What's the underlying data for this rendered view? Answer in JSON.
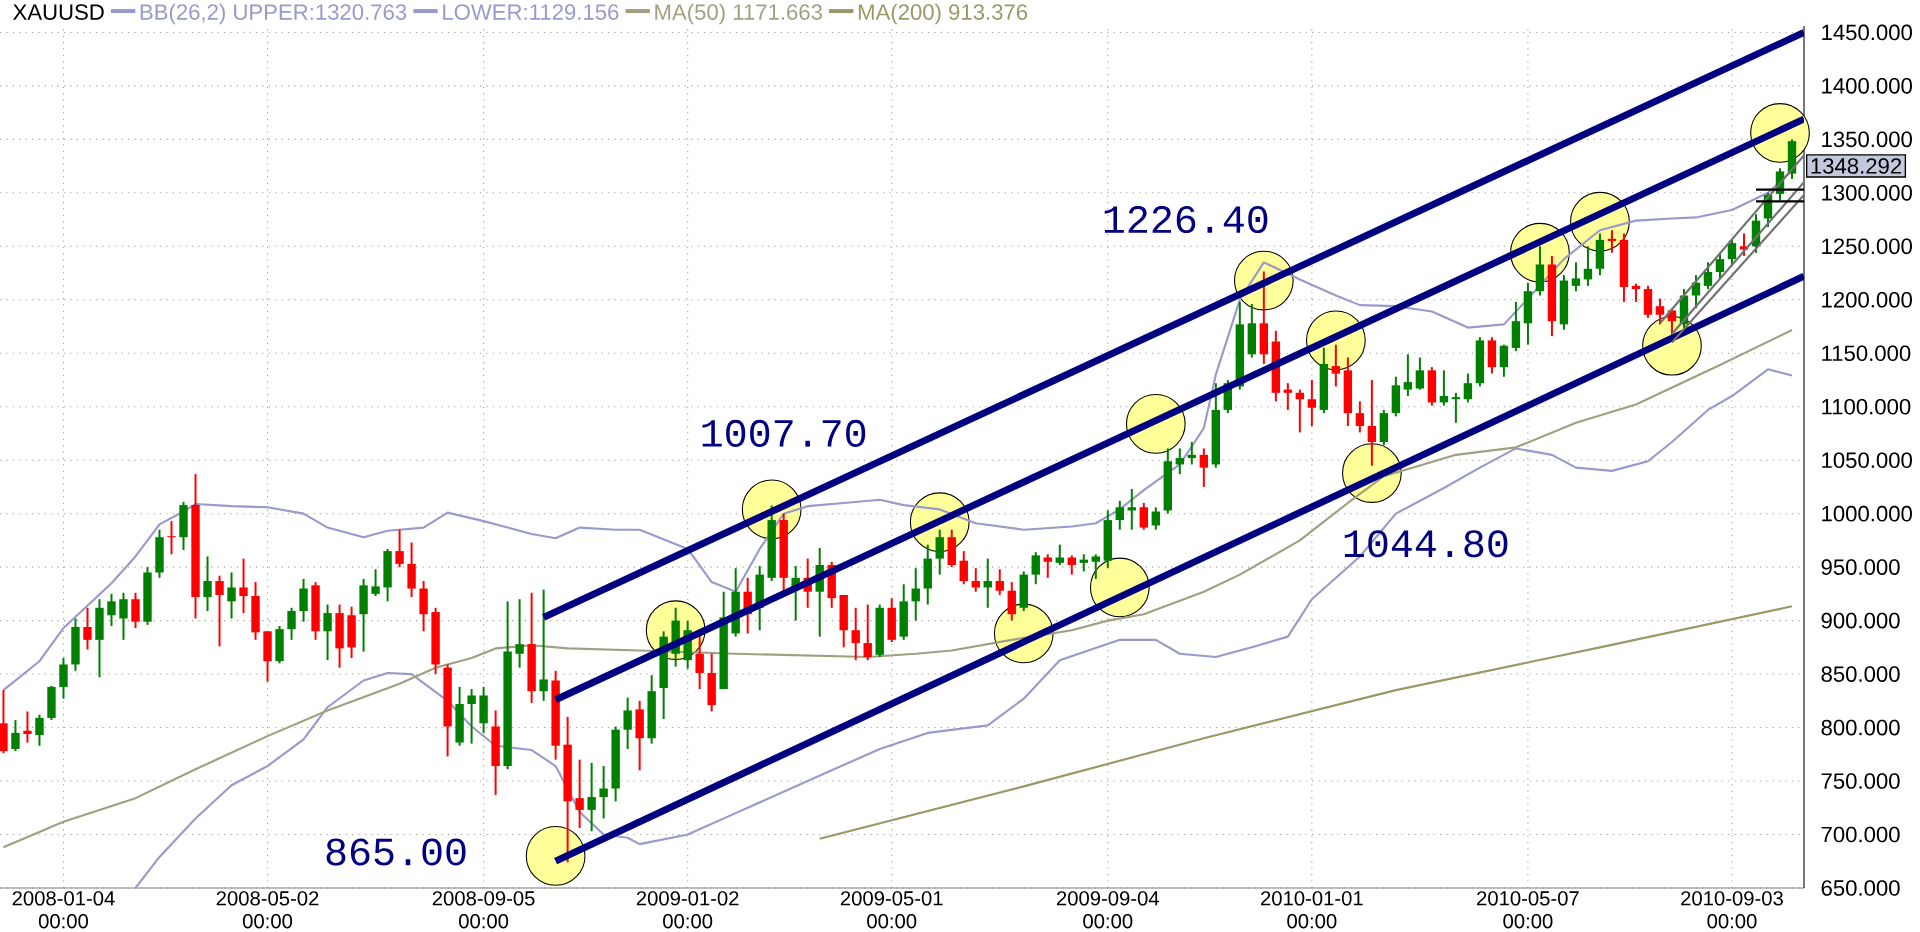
{
  "chart_data": {
    "type": "candlestick",
    "title": "XAUUSD",
    "x": [
      "2007-11-30",
      "2007-12-07",
      "2007-12-14",
      "2007-12-21",
      "2007-12-28",
      "2008-01-04",
      "2008-01-11",
      "2008-01-18",
      "2008-01-25",
      "2008-02-01",
      "2008-02-08",
      "2008-02-15",
      "2008-02-22",
      "2008-02-29",
      "2008-03-07",
      "2008-03-14",
      "2008-03-21",
      "2008-03-28",
      "2008-04-04",
      "2008-04-11",
      "2008-04-18",
      "2008-04-25",
      "2008-05-02",
      "2008-05-09",
      "2008-05-16",
      "2008-05-23",
      "2008-05-30",
      "2008-06-06",
      "2008-06-13",
      "2008-06-20",
      "2008-06-27",
      "2008-07-04",
      "2008-07-11",
      "2008-07-18",
      "2008-07-25",
      "2008-08-01",
      "2008-08-08",
      "2008-08-15",
      "2008-08-22",
      "2008-08-29",
      "2008-09-05",
      "2008-09-12",
      "2008-09-19",
      "2008-09-26",
      "2008-10-03",
      "2008-10-10",
      "2008-10-17",
      "2008-10-24",
      "2008-10-31",
      "2008-11-07",
      "2008-11-14",
      "2008-11-21",
      "2008-11-28",
      "2008-12-05",
      "2008-12-12",
      "2008-12-19",
      "2008-12-26",
      "2009-01-02",
      "2009-01-09",
      "2009-01-16",
      "2009-01-23",
      "2009-01-30",
      "2009-02-06",
      "2009-02-13",
      "2009-02-20",
      "2009-02-27",
      "2009-03-06",
      "2009-03-13",
      "2009-03-20",
      "2009-03-27",
      "2009-04-03",
      "2009-04-10",
      "2009-04-17",
      "2009-04-24",
      "2009-05-01",
      "2009-05-08",
      "2009-05-15",
      "2009-05-22",
      "2009-05-29",
      "2009-06-05",
      "2009-06-12",
      "2009-06-19",
      "2009-06-26",
      "2009-07-03",
      "2009-07-10",
      "2009-07-17",
      "2009-07-24",
      "2009-07-31",
      "2009-08-07",
      "2009-08-14",
      "2009-08-21",
      "2009-08-28",
      "2009-09-04",
      "2009-09-11",
      "2009-09-18",
      "2009-09-25",
      "2009-10-02",
      "2009-10-09",
      "2009-10-16",
      "2009-10-23",
      "2009-10-30",
      "2009-11-06",
      "2009-11-13",
      "2009-11-20",
      "2009-11-27",
      "2009-12-04",
      "2009-12-11",
      "2009-12-18",
      "2009-12-25",
      "2010-01-01",
      "2010-01-08",
      "2010-01-15",
      "2010-01-22",
      "2010-01-29",
      "2010-02-05",
      "2010-02-12",
      "2010-02-19",
      "2010-02-26",
      "2010-03-05",
      "2010-03-12",
      "2010-03-19",
      "2010-03-26",
      "2010-04-02",
      "2010-04-09",
      "2010-04-16",
      "2010-04-23",
      "2010-04-30",
      "2010-05-07",
      "2010-05-14",
      "2010-05-21",
      "2010-05-28",
      "2010-06-04",
      "2010-06-11",
      "2010-06-18",
      "2010-06-25",
      "2010-07-02",
      "2010-07-09",
      "2010-07-16",
      "2010-07-23",
      "2010-07-30",
      "2010-08-06",
      "2010-08-13",
      "2010-08-20",
      "2010-08-27",
      "2010-09-03",
      "2010-09-10",
      "2010-09-17",
      "2010-09-24",
      "2010-10-01",
      "2010-10-08"
    ],
    "ohlc": [
      [
        804,
        835,
        776,
        778
      ],
      [
        780,
        807,
        778,
        795
      ],
      [
        797,
        815,
        786,
        794
      ],
      [
        793,
        812,
        783,
        809
      ],
      [
        809,
        839,
        807,
        838
      ],
      [
        838,
        865,
        827,
        859
      ],
      [
        859,
        902,
        853,
        894
      ],
      [
        894,
        912,
        873,
        882
      ],
      [
        882,
        920,
        847,
        912
      ],
      [
        905,
        925,
        895,
        918
      ],
      [
        902,
        926,
        882,
        920
      ],
      [
        920,
        926,
        893,
        899
      ],
      [
        899,
        950,
        896,
        945
      ],
      [
        945,
        985,
        940,
        978
      ],
      [
        979,
        993,
        962,
        978
      ],
      [
        978,
        1011,
        966,
        1008
      ],
      [
        1008,
        1037,
        902,
        922
      ],
      [
        922,
        960,
        909,
        937
      ],
      [
        937,
        942,
        876,
        924
      ],
      [
        918,
        945,
        902,
        931
      ],
      [
        931,
        958,
        907,
        923
      ],
      [
        923,
        936,
        882,
        889
      ],
      [
        890,
        890,
        843,
        862
      ],
      [
        862,
        895,
        860,
        892
      ],
      [
        892,
        912,
        882,
        909
      ],
      [
        909,
        939,
        899,
        930
      ],
      [
        933,
        936,
        882,
        890
      ],
      [
        890,
        915,
        863,
        907
      ],
      [
        907,
        915,
        856,
        874
      ],
      [
        905,
        913,
        865,
        875
      ],
      [
        906,
        939,
        871,
        933
      ],
      [
        925,
        948,
        923,
        932
      ],
      [
        931,
        967,
        918,
        965
      ],
      [
        965,
        985,
        950,
        953
      ],
      [
        953,
        973,
        922,
        930
      ],
      [
        930,
        937,
        890,
        906
      ],
      [
        908,
        912,
        850,
        859
      ],
      [
        856,
        859,
        773,
        801
      ],
      [
        786,
        838,
        783,
        822
      ],
      [
        822,
        836,
        785,
        830
      ],
      [
        804,
        838,
        795,
        830
      ],
      [
        801,
        816,
        737,
        764
      ],
      [
        764,
        918,
        761,
        871
      ],
      [
        869,
        920,
        856,
        878
      ],
      [
        878,
        926,
        823,
        834
      ],
      [
        834,
        929,
        825,
        845
      ],
      [
        844,
        853,
        770,
        783
      ],
      [
        784,
        810,
        674,
        731
      ],
      [
        734,
        770,
        706,
        723
      ],
      [
        723,
        767,
        703,
        735
      ],
      [
        735,
        764,
        715,
        743
      ],
      [
        743,
        801,
        731,
        798
      ],
      [
        798,
        828,
        780,
        816
      ],
      [
        817,
        825,
        760,
        790
      ],
      [
        790,
        849,
        785,
        834
      ],
      [
        837,
        890,
        808,
        885
      ],
      [
        869,
        912,
        857,
        900
      ],
      [
        863,
        900,
        855,
        891
      ],
      [
        869,
        890,
        836,
        851
      ],
      [
        851,
        869,
        815,
        821
      ],
      [
        836,
        927,
        836,
        903
      ],
      [
        888,
        949,
        885,
        927
      ],
      [
        927,
        940,
        888,
        906
      ],
      [
        912,
        951,
        891,
        943
      ],
      [
        940,
        1007.7,
        937,
        994
      ],
      [
        994,
        1000,
        927,
        940
      ],
      [
        931,
        951,
        900,
        940
      ],
      [
        940,
        958,
        912,
        927
      ],
      [
        927,
        968,
        885,
        952
      ],
      [
        952,
        955,
        912,
        921
      ],
      [
        924,
        924,
        875,
        891
      ],
      [
        891,
        912,
        863,
        879
      ],
      [
        879,
        915,
        863,
        866
      ],
      [
        868,
        915,
        866,
        912
      ],
      [
        912,
        921,
        880,
        882
      ],
      [
        885,
        934,
        882,
        918
      ],
      [
        918,
        949,
        900,
        930
      ],
      [
        930,
        971,
        915,
        958
      ],
      [
        958,
        985,
        943,
        978
      ],
      [
        978,
        985,
        950,
        952
      ],
      [
        956,
        965,
        934,
        937
      ],
      [
        937,
        949,
        927,
        931
      ],
      [
        931,
        958,
        912,
        937
      ],
      [
        937,
        948,
        924,
        928
      ],
      [
        928,
        936,
        900,
        906
      ],
      [
        912,
        946,
        909,
        943
      ],
      [
        943,
        964,
        934,
        961
      ],
      [
        959,
        962,
        940,
        955
      ],
      [
        954,
        971,
        952,
        959
      ],
      [
        959,
        961,
        943,
        952
      ],
      [
        954,
        962,
        946,
        957
      ],
      [
        955,
        962,
        939,
        960
      ],
      [
        956,
        1003,
        949,
        994
      ],
      [
        994,
        1012,
        985,
        1006
      ],
      [
        1003,
        1023,
        985,
        1006
      ],
      [
        1006,
        1010,
        985,
        987
      ],
      [
        989,
        1006,
        985,
        1002
      ],
      [
        1003,
        1061,
        1000,
        1049
      ],
      [
        1046,
        1061,
        1037,
        1052
      ],
      [
        1052,
        1067,
        1046,
        1055
      ],
      [
        1055,
        1061,
        1025,
        1043
      ],
      [
        1046,
        1122,
        1043,
        1097
      ],
      [
        1097,
        1125,
        1094,
        1122
      ],
      [
        1119,
        1198,
        1116,
        1177
      ],
      [
        1149,
        1196,
        1146,
        1178
      ],
      [
        1178,
        1226.4,
        1140,
        1149
      ],
      [
        1161,
        1171,
        1105,
        1113
      ],
      [
        1116,
        1122,
        1097,
        1113
      ],
      [
        1113,
        1116,
        1076,
        1107
      ],
      [
        1107,
        1125,
        1082,
        1099
      ],
      [
        1097,
        1155,
        1094,
        1140
      ],
      [
        1138,
        1158,
        1119,
        1131
      ],
      [
        1134,
        1146,
        1082,
        1094
      ],
      [
        1094,
        1105,
        1076,
        1082
      ],
      [
        1082,
        1125,
        1044.8,
        1067
      ],
      [
        1067,
        1097,
        1064,
        1094
      ],
      [
        1094,
        1128,
        1091,
        1120
      ],
      [
        1116,
        1149,
        1110,
        1123
      ],
      [
        1117,
        1146,
        1116,
        1134
      ],
      [
        1134,
        1137,
        1101,
        1104
      ],
      [
        1104,
        1134,
        1101,
        1110
      ],
      [
        1107,
        1113,
        1085,
        1109
      ],
      [
        1107,
        1131,
        1104,
        1122
      ],
      [
        1122,
        1165,
        1119,
        1162
      ],
      [
        1162,
        1165,
        1131,
        1137
      ],
      [
        1137,
        1158,
        1128,
        1157
      ],
      [
        1155,
        1198,
        1152,
        1180
      ],
      [
        1178,
        1216,
        1158,
        1208
      ],
      [
        1208,
        1250,
        1204,
        1233
      ],
      [
        1233,
        1241,
        1166,
        1180
      ],
      [
        1177,
        1223,
        1172,
        1218
      ],
      [
        1213,
        1235,
        1208,
        1220
      ],
      [
        1219,
        1250,
        1213,
        1229
      ],
      [
        1229,
        1262,
        1223,
        1256
      ],
      [
        1257,
        1265,
        1244,
        1255
      ],
      [
        1256,
        1262,
        1198,
        1212
      ],
      [
        1213,
        1215,
        1198,
        1210
      ],
      [
        1210,
        1213,
        1183,
        1186
      ],
      [
        1194,
        1201,
        1177,
        1186
      ],
      [
        1190,
        1192,
        1165,
        1180
      ],
      [
        1177,
        1210,
        1172,
        1204
      ],
      [
        1204,
        1223,
        1192,
        1216
      ],
      [
        1213,
        1235,
        1210,
        1226
      ],
      [
        1226,
        1244,
        1220,
        1238
      ],
      [
        1238,
        1256,
        1232,
        1253
      ],
      [
        1250,
        1262,
        1241,
        1247
      ],
      [
        1250,
        1280,
        1244,
        1274
      ],
      [
        1276,
        1300,
        1268,
        1298
      ],
      [
        1299,
        1323,
        1293,
        1320
      ],
      [
        1318,
        1350,
        1313,
        1348.292
      ]
    ],
    "series": [
      {
        "type": "scatter",
        "color": "#ffff99",
        "marker": "circle",
        "x": [
          "2008-10-17",
          "2008-12-26",
          "2009-02-20",
          "2009-05-29",
          "2009-07-17",
          "2009-09-11",
          "2009-10-02",
          "2009-12-04",
          "2010-01-15",
          "2010-02-05",
          "2010-05-14",
          "2010-06-18",
          "2010-07-30",
          "2010-10-01"
        ],
        "values": [
          680,
          891,
          1004,
          992,
          888,
          931,
          1084,
          1218,
          1162,
          1038,
          1244,
          1273,
          1157,
          1356
        ]
      },
      {
        "type": "line",
        "name": "BB(26,2) UPPER:1320.763",
        "color": "#9999cc",
        "x": [
          "2007-11-30",
          "2007-12-21",
          "2008-01-04",
          "2008-02-01",
          "2008-02-15",
          "2008-02-29",
          "2008-03-14",
          "2008-03-21",
          "2008-04-11",
          "2008-05-02",
          "2008-05-23",
          "2008-06-06",
          "2008-06-27",
          "2008-07-11",
          "2008-08-01",
          "2008-08-15",
          "2008-09-05",
          "2008-09-19",
          "2008-10-03",
          "2008-10-17",
          "2008-10-31",
          "2008-11-21",
          "2008-12-05",
          "2009-01-02",
          "2009-01-16",
          "2009-01-30",
          "2009-02-13",
          "2009-02-27",
          "2009-03-13",
          "2009-04-03",
          "2009-04-24",
          "2009-05-08",
          "2009-05-29",
          "2009-06-19",
          "2009-07-17",
          "2009-08-14",
          "2009-08-28",
          "2009-09-11",
          "2009-09-25",
          "2009-10-16",
          "2009-10-30",
          "2009-11-06",
          "2009-11-20",
          "2009-12-04",
          "2009-12-25",
          "2010-01-15",
          "2010-01-29",
          "2010-02-19",
          "2010-03-12",
          "2010-04-02",
          "2010-04-23",
          "2010-05-07",
          "2010-05-28",
          "2010-06-18",
          "2010-07-09",
          "2010-07-30",
          "2010-08-13",
          "2010-09-03",
          "2010-09-24",
          "2010-10-08"
        ],
        "values": [
          835,
          862,
          893,
          935,
          960,
          990,
          1002,
          1009,
          1007,
          1006,
          1000,
          987,
          978,
          984,
          987,
          1001,
          993,
          987,
          981,
          977,
          987,
          985,
          985,
          967,
          936,
          927,
          967,
          1000,
          1007,
          1010,
          1013,
          1008,
          1004,
          991,
          985,
          988,
          991,
          1004,
          1022,
          1046,
          1080,
          1130,
          1200,
          1235,
          1219,
          1204,
          1195,
          1194,
          1189,
          1174,
          1177,
          1201,
          1238,
          1265,
          1274,
          1276,
          1277,
          1284,
          1300,
          1320.763
        ]
      },
      {
        "type": "line",
        "name": "LOWER:1129.156",
        "color": "#9999cc",
        "x": [
          "2008-02-15",
          "2008-02-29",
          "2008-03-21",
          "2008-04-11",
          "2008-05-02",
          "2008-05-23",
          "2008-06-06",
          "2008-06-27",
          "2008-07-11",
          "2008-07-25",
          "2008-08-15",
          "2008-08-29",
          "2008-09-12",
          "2008-10-03",
          "2008-10-17",
          "2008-10-31",
          "2008-11-14",
          "2008-11-28",
          "2008-12-05",
          "2009-01-02",
          "2009-01-30",
          "2009-02-27",
          "2009-03-27",
          "2009-04-24",
          "2009-05-22",
          "2009-06-26",
          "2009-07-17",
          "2009-08-07",
          "2009-09-11",
          "2009-10-02",
          "2009-10-16",
          "2009-11-06",
          "2009-11-27",
          "2009-12-18",
          "2010-01-01",
          "2010-01-29",
          "2010-02-19",
          "2010-03-19",
          "2010-04-09",
          "2010-04-30",
          "2010-05-21",
          "2010-06-04",
          "2010-06-25",
          "2010-07-16",
          "2010-07-30",
          "2010-08-20",
          "2010-09-03",
          "2010-09-24",
          "2010-10-08"
        ],
        "values": [
          650,
          679,
          715,
          746,
          764,
          789,
          819,
          844,
          851,
          850,
          825,
          801,
          783,
          779,
          764,
          721,
          700,
          697,
          691,
          700,
          720,
          740,
          760,
          780,
          795,
          802,
          827,
          863,
          882,
          882,
          869,
          866,
          875,
          885,
          920,
          960,
          1000,
          1024,
          1043,
          1061,
          1055,
          1043,
          1040,
          1049,
          1067,
          1097,
          1110,
          1135,
          1129.156
        ]
      },
      {
        "type": "line",
        "name": "MA(50) 1171.663",
        "color": "#a0a080",
        "x": [
          "2007-11-30",
          "2008-01-04",
          "2008-02-15",
          "2008-03-21",
          "2008-05-02",
          "2008-06-06",
          "2008-07-18",
          "2008-08-08",
          "2008-08-29",
          "2008-09-12",
          "2008-10-03",
          "2008-10-24",
          "2008-11-14",
          "2008-12-05",
          "2009-01-30",
          "2009-04-17",
          "2009-05-15",
          "2009-06-05",
          "2009-07-10",
          "2009-08-14",
          "2009-09-04",
          "2009-09-25",
          "2009-10-30",
          "2009-11-20",
          "2009-12-25",
          "2010-01-22",
          "2010-02-12",
          "2010-03-26",
          "2010-04-30",
          "2010-06-04",
          "2010-07-09",
          "2010-08-27",
          "2010-10-08"
        ],
        "values": [
          688,
          712,
          734,
          761,
          792,
          816,
          841,
          856,
          865,
          874,
          877,
          874,
          873,
          872,
          869,
          866,
          869,
          872,
          882,
          891,
          900,
          906,
          927,
          943,
          975,
          1010,
          1035,
          1055,
          1062,
          1085,
          1102,
          1139,
          1171.663
        ]
      },
      {
        "type": "line",
        "name": "MA(200) 913.376",
        "color": "#999966",
        "x": [
          "2009-03-20",
          "2009-07-17",
          "2009-10-30",
          "2010-02-19",
          "2010-06-18",
          "2010-10-08"
        ],
        "values": [
          696,
          745,
          790,
          835,
          875,
          913.376
        ]
      },
      {
        "type": "line",
        "color": "#000080",
        "x": [
          "2008-10-10",
          "2010-10-15"
        ],
        "values": [
          903,
          1450
        ]
      },
      {
        "type": "line",
        "color": "#000080",
        "x": [
          "2008-10-17",
          "2010-10-15"
        ],
        "values": [
          826,
          1369
        ]
      },
      {
        "type": "line",
        "color": "#000080",
        "x": [
          "2008-10-17",
          "2010-10-15"
        ],
        "values": [
          675,
          1222
        ]
      },
      {
        "type": "line",
        "color": "#707070",
        "x": [
          "2010-07-23",
          "2010-10-15"
        ],
        "values": [
          1178,
          1335
        ]
      },
      {
        "type": "line",
        "color": "#707070",
        "x": [
          "2010-07-30",
          "2010-10-15"
        ],
        "values": [
          1168,
          1310
        ]
      },
      {
        "type": "line",
        "color": "#707070",
        "x": [
          "2010-07-30",
          "2010-10-15"
        ],
        "values": [
          1160,
          1298
        ]
      },
      {
        "type": "line",
        "color": "#000000",
        "x": [
          "2010-09-17",
          "2010-10-15"
        ],
        "values": [
          1303,
          1303
        ]
      },
      {
        "type": "line",
        "color": "#000000",
        "x": [
          "2010-09-17",
          "2010-10-15"
        ],
        "values": [
          1292,
          1292
        ]
      }
    ],
    "annotations": [
      {
        "text": "1226.40",
        "x": "2009-12-04",
        "y": 1226.4
      },
      {
        "text": "1007.70",
        "x": "2009-02-20",
        "y": 1007.7
      },
      {
        "text": "1044.80",
        "x": "2010-02-05",
        "y": 1044.8
      },
      "865.00",
      "1348.292"
    ],
    "xlim": [
      "2007-11-28",
      "2010-10-15"
    ],
    "xticks": [
      {
        "value": "2008-01-04",
        "label": "2008-01-04 00:00"
      },
      {
        "value": "2008-05-02",
        "label": "2008-05-02 00:00"
      },
      {
        "value": "2008-09-05",
        "label": "2008-09-05 00:00"
      },
      {
        "value": "2009-01-02",
        "label": "2009-01-02 00:00"
      },
      {
        "value": "2009-05-01",
        "label": "2009-05-01 00:00"
      },
      {
        "value": "2009-09-04",
        "label": "2009-09-04 00:00"
      },
      {
        "value": "2010-01-01",
        "label": "2010-01-01 00:00"
      },
      {
        "value": "2010-05-07",
        "label": "2010-05-07 00:00"
      },
      {
        "value": "2010-09-03",
        "label": "2010-09-03 00:00"
      }
    ],
    "ylim": [
      650,
      1456
    ],
    "yticks": [
      {
        "value": 650,
        "label": "650.000"
      },
      {
        "value": 700,
        "label": "700.000"
      },
      {
        "value": 750,
        "label": "750.000"
      },
      {
        "value": 800,
        "label": "800.000"
      },
      {
        "value": 850,
        "label": "850.000"
      },
      {
        "value": 900,
        "label": "900.000"
      },
      {
        "value": 950,
        "label": "950.000"
      },
      {
        "value": 1000,
        "label": "1000.000"
      },
      {
        "value": 1050,
        "label": "1050.000"
      },
      {
        "value": 1100,
        "label": "1100.000"
      },
      {
        "value": 1150,
        "label": "1150.000"
      },
      {
        "value": 1200,
        "label": "1200.000"
      },
      {
        "value": 1250,
        "label": "1250.000"
      },
      {
        "value": 1300,
        "label": "1300.000"
      },
      {
        "value": 1350,
        "label": "1350.000"
      },
      {
        "value": 1400,
        "label": "1400.000"
      },
      {
        "value": 1450,
        "label": "1450.000"
      }
    ],
    "grid": true,
    "legend": "top"
  }
}
